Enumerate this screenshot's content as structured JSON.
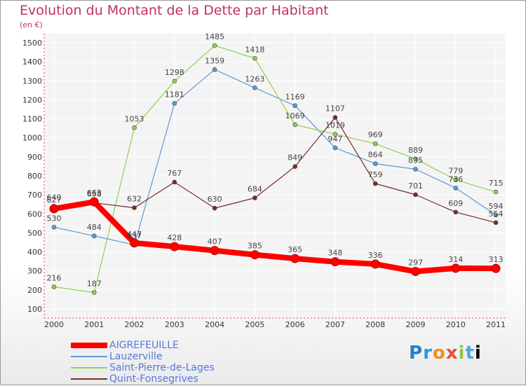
{
  "chart_data": {
    "type": "line",
    "title": "Evolution du Montant de la Dette par Habitant",
    "subtitle": "(en €)",
    "x": [
      "2000",
      "2001",
      "2002",
      "2003",
      "2004",
      "2005",
      "2006",
      "2007",
      "2008",
      "2009",
      "2010",
      "2011"
    ],
    "ylim": [
      100,
      1500
    ],
    "yticks": [
      100,
      200,
      300,
      400,
      500,
      600,
      700,
      800,
      900,
      1000,
      1100,
      1200,
      1300,
      1400,
      1500
    ],
    "grid": true,
    "legend_position": "bottom-left",
    "series": [
      {
        "name": "AIGREFEUILLE",
        "color": "#ff0000",
        "emphasis": true,
        "values": [
          627,
          663,
          447,
          428,
          407,
          385,
          365,
          348,
          336,
          297,
          314,
          313
        ]
      },
      {
        "name": "Lauzerville",
        "color": "#5b9bd5",
        "values": [
          530,
          484,
          437,
          1181,
          1359,
          1263,
          1169,
          947,
          864,
          835,
          736,
          594
        ]
      },
      {
        "name": "Saint-Pierre-de-Lages",
        "color": "#8fd14f",
        "values": [
          216,
          187,
          1053,
          1298,
          1485,
          1418,
          1069,
          1019,
          969,
          889,
          779,
          715
        ]
      },
      {
        "name": "Quint-Fonsegrives",
        "color": "#7b2a2a",
        "values": [
          640,
          658,
          632,
          767,
          630,
          684,
          849,
          1107,
          759,
          701,
          609,
          554
        ]
      }
    ]
  },
  "brand": {
    "letters": [
      "P",
      "r",
      "o",
      "x",
      "i",
      "t",
      "i"
    ]
  }
}
